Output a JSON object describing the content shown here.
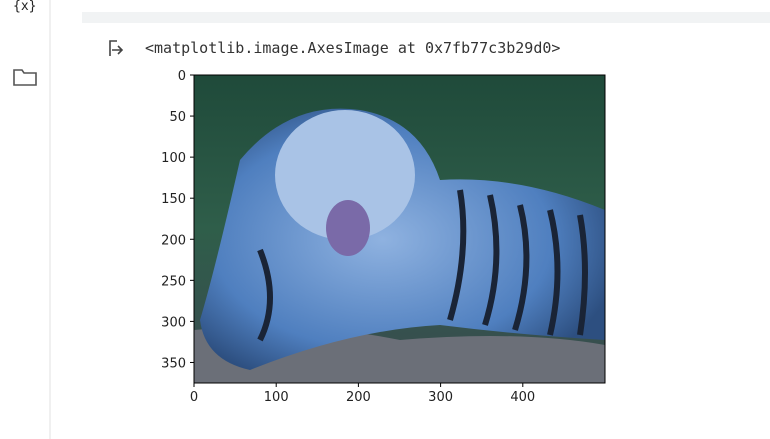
{
  "output": {
    "text": "<matplotlib.image.AxesImage at 0x7fb77c3b29d0>"
  },
  "plot": {
    "xlim": [
      0,
      500
    ],
    "ylim": [
      0,
      375
    ],
    "xticks": [
      0,
      100,
      200,
      300,
      400
    ],
    "yticks": [
      0,
      50,
      100,
      150,
      200,
      250,
      300,
      350
    ]
  }
}
